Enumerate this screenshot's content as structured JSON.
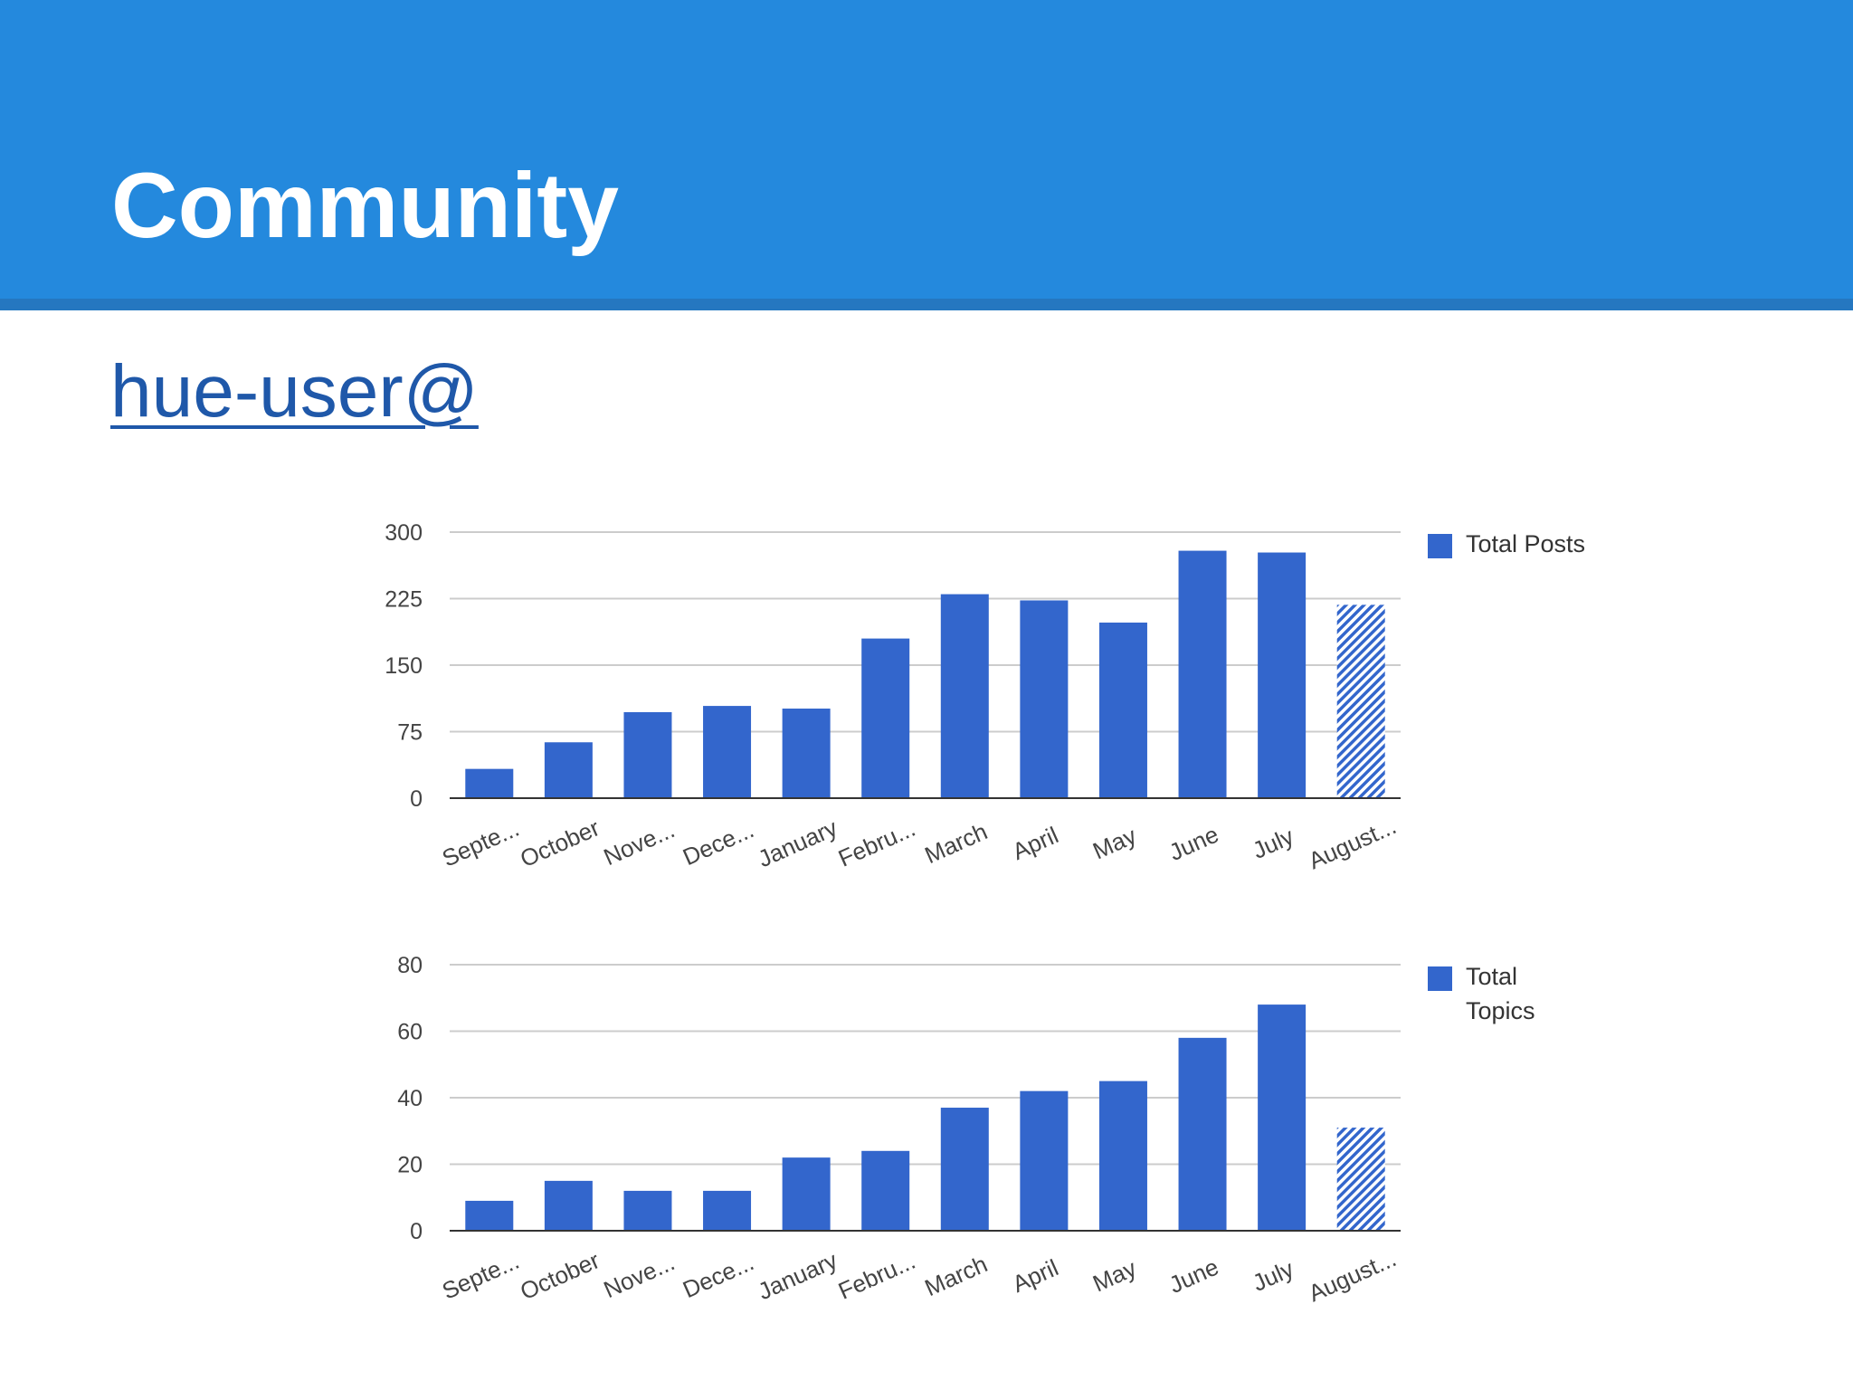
{
  "slide": {
    "title": "Community",
    "link_text": "hue-user@"
  },
  "colors": {
    "header_bg": "#2489dd",
    "bar": "#3366cc",
    "bar_partial_hatch": "#3366cc"
  },
  "chart_data": [
    {
      "type": "bar",
      "categories": [
        "Septe...",
        "October",
        "Nove...",
        "Dece...",
        "January",
        "Febru...",
        "March",
        "April",
        "May",
        "June",
        "July",
        "August..."
      ],
      "series": [
        {
          "name": "Total Posts",
          "values": [
            33,
            63,
            97,
            104,
            101,
            180,
            230,
            223,
            198,
            279,
            277,
            218
          ]
        }
      ],
      "last_bar_partial": true,
      "ylim": [
        0,
        300
      ],
      "yticks": [
        0,
        75,
        150,
        225,
        300
      ],
      "grid": true,
      "legend": "right"
    },
    {
      "type": "bar",
      "categories": [
        "Septe...",
        "October",
        "Nove...",
        "Dece...",
        "January",
        "Febru...",
        "March",
        "April",
        "May",
        "June",
        "July",
        "August..."
      ],
      "series": [
        {
          "name": "Total Topics",
          "values": [
            9,
            15,
            12,
            12,
            22,
            24,
            37,
            42,
            45,
            58,
            68,
            31
          ]
        }
      ],
      "last_bar_partial": true,
      "ylim": [
        0,
        80
      ],
      "yticks": [
        0,
        20,
        40,
        60,
        80
      ],
      "grid": true,
      "legend": "right"
    }
  ]
}
